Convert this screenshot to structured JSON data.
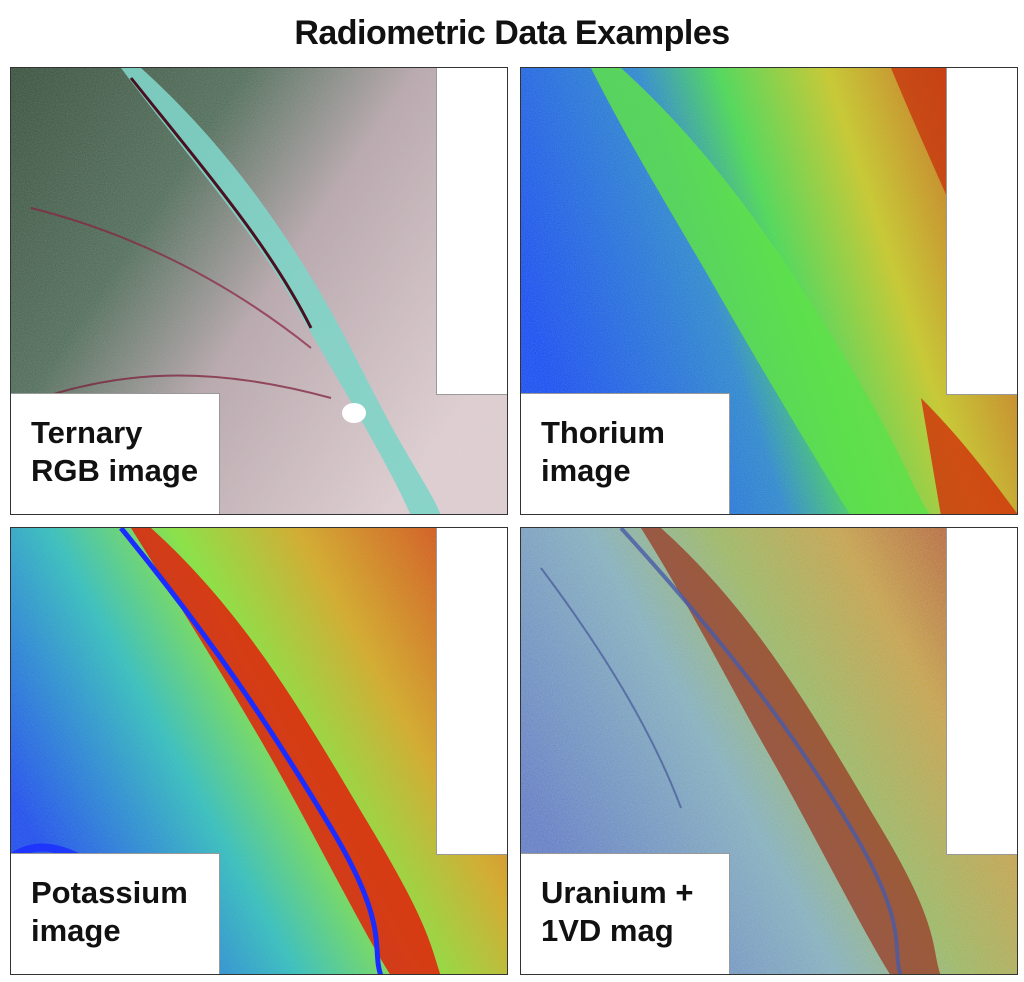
{
  "title": "Radiometric Data Examples",
  "panels": [
    {
      "label_line1": "Ternary",
      "label_line2": "RGB image"
    },
    {
      "label_line1": "Thorium",
      "label_line2": "image"
    },
    {
      "label_line1": "Potassium",
      "label_line2": "image"
    },
    {
      "label_line1": "Uranium +",
      "label_line2": "1VD mag"
    }
  ]
}
